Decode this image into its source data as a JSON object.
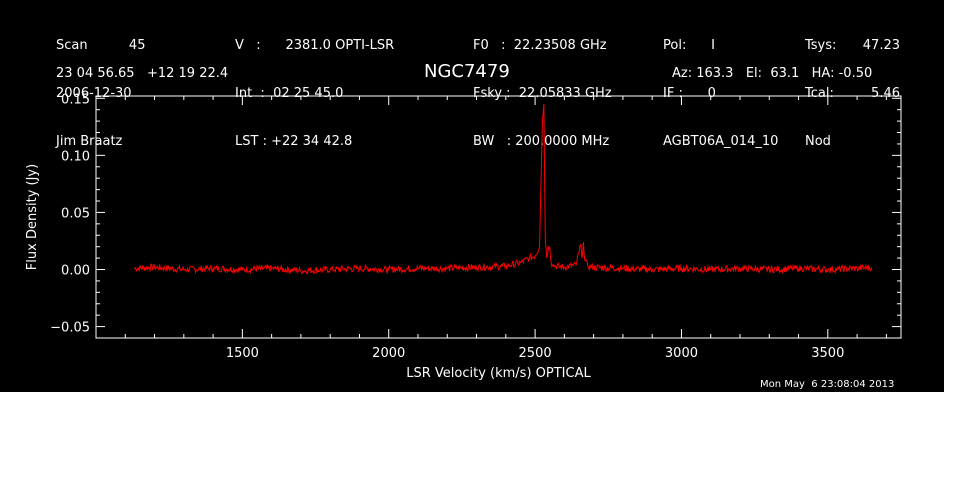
{
  "header": {
    "col1": [
      "Scan          45",
      "2006-12-30",
      "Jim Braatz"
    ],
    "col2": [
      "V   :      2381.0 OPTI-LSR",
      "Int  :  02 25 45.0",
      "LST : +22 34 42.8"
    ],
    "col3": [
      "F0   :  22.23508 GHz",
      "Fsky :  22.05833 GHz",
      "BW   : 200.0000 MHz"
    ],
    "col4": [
      "Pol:      I",
      "IF :      0",
      "AGBT06A_014_10"
    ],
    "col5": [
      "Tsys:",
      "Tcal:",
      "Nod"
    ],
    "col5_values": [
      "47.23",
      "5.46",
      ""
    ],
    "coords": "23 04 56.65   +12 19 22.4",
    "source": "NGC7479",
    "pointing": "Az: 163.3   El:  63.1   HA: -0.50"
  },
  "timestamp": "Mon May  6 23:08:04 2013",
  "colors": {
    "background": "#000000",
    "axes": "#ffffff",
    "series": "#ff0000"
  },
  "chart_data": {
    "type": "line",
    "title": "NGC7479",
    "xlabel": "LSR Velocity (km/s) OPTICAL",
    "ylabel": "Flux Density (Jy)",
    "xlim": [
      1000,
      3750
    ],
    "ylim": [
      -0.06,
      0.152
    ],
    "x_ticks": [
      1500,
      2000,
      2500,
      3000,
      3500
    ],
    "y_ticks": [
      -0.05,
      0.0,
      0.05,
      0.1,
      0.15
    ],
    "y_tick_labels": [
      "−0.05",
      "0.00",
      "0.05",
      "0.10",
      "0.15"
    ],
    "grid": false,
    "series": [
      {
        "x": [
          1130,
          1200,
          1300,
          1400,
          1500,
          1600,
          1700,
          1800,
          1900,
          2000,
          2100,
          2200,
          2300,
          2400,
          2450,
          2480,
          2500,
          2515,
          2525,
          2530,
          2535,
          2540,
          2545,
          2550,
          2555,
          2560,
          2570,
          2600,
          2640,
          2650,
          2655,
          2660,
          2665,
          2670,
          2680,
          2700,
          2800,
          2900,
          3000,
          3100,
          3200,
          3300,
          3400,
          3500,
          3600,
          3650
        ],
        "y": [
          0.001,
          0.002,
          0.0,
          0.001,
          0.0,
          0.001,
          -0.001,
          0.0,
          0.001,
          0.0,
          0.001,
          0.001,
          0.002,
          0.003,
          0.006,
          0.01,
          0.012,
          0.02,
          0.13,
          0.145,
          0.025,
          0.01,
          0.02,
          0.02,
          0.006,
          0.004,
          0.003,
          0.002,
          0.004,
          0.015,
          0.022,
          0.01,
          0.024,
          0.008,
          0.003,
          0.002,
          0.001,
          0.0,
          0.001,
          0.0,
          0.001,
          0.0,
          0.001,
          0.0,
          0.001,
          0.002
        ]
      }
    ]
  }
}
